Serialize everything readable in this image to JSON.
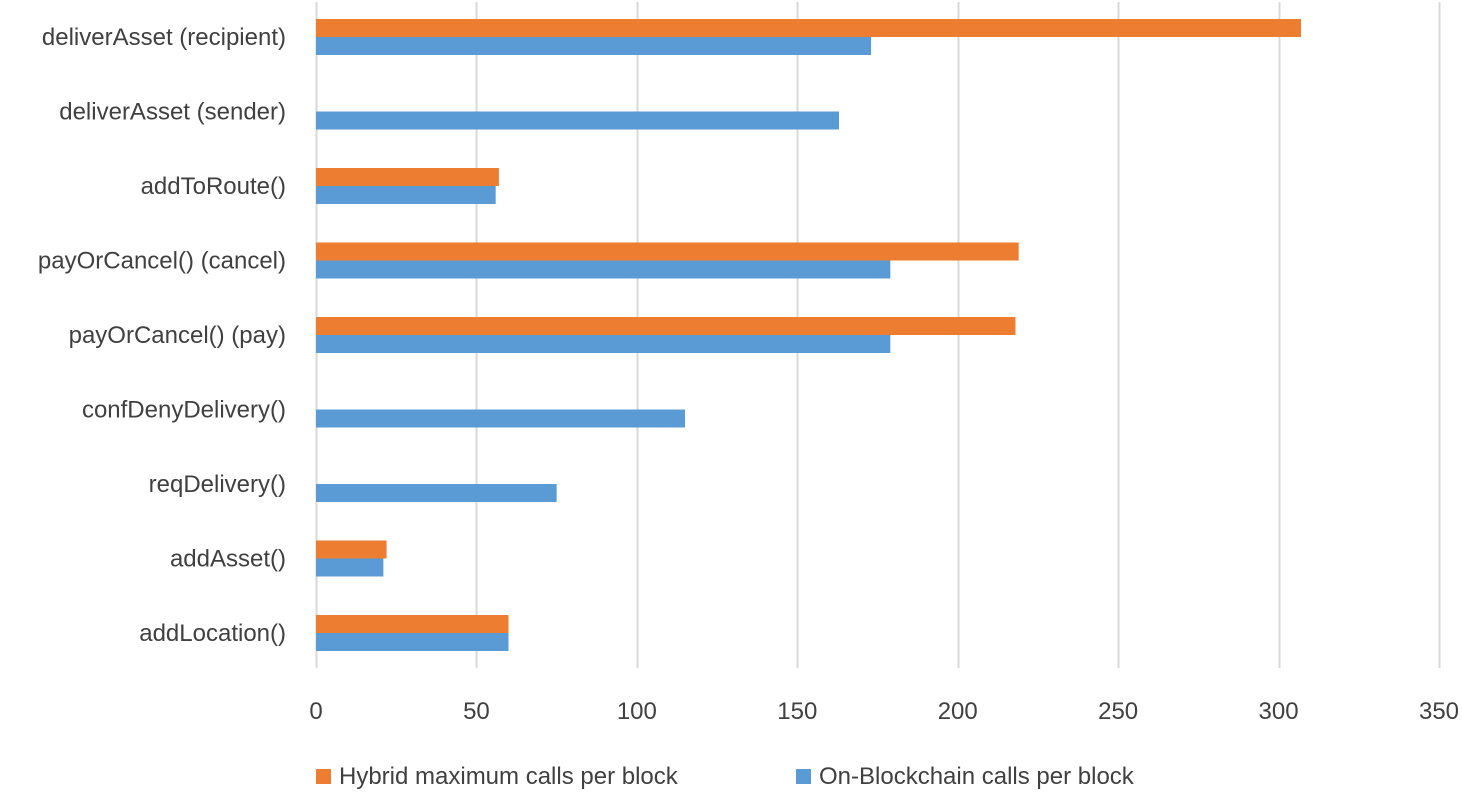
{
  "chart_data": {
    "type": "bar",
    "orientation": "horizontal",
    "categories": [
      "deliverAsset (recipient)",
      "deliverAsset (sender)",
      "addToRoute()",
      "payOrCancel() (cancel)",
      "payOrCancel() (pay)",
      "confDenyDelivery()",
      "reqDelivery()",
      "addAsset()",
      "addLocation()"
    ],
    "series": [
      {
        "name": "Hybrid maximum calls per block",
        "color": "#ED7D31",
        "values": [
          307,
          null,
          57,
          219,
          218,
          null,
          null,
          22,
          60
        ]
      },
      {
        "name": "On-Blockchain calls per block",
        "color": "#5B9BD5",
        "values": [
          173,
          163,
          56,
          179,
          179,
          115,
          75,
          21,
          60
        ]
      }
    ],
    "xlim": [
      0,
      350
    ],
    "xticks": [
      0,
      50,
      100,
      150,
      200,
      250,
      300,
      350
    ],
    "title": "",
    "xlabel": "",
    "ylabel": "",
    "grid": "vertical",
    "legend_position": "bottom",
    "gridline_color": "#D9D9D9"
  }
}
